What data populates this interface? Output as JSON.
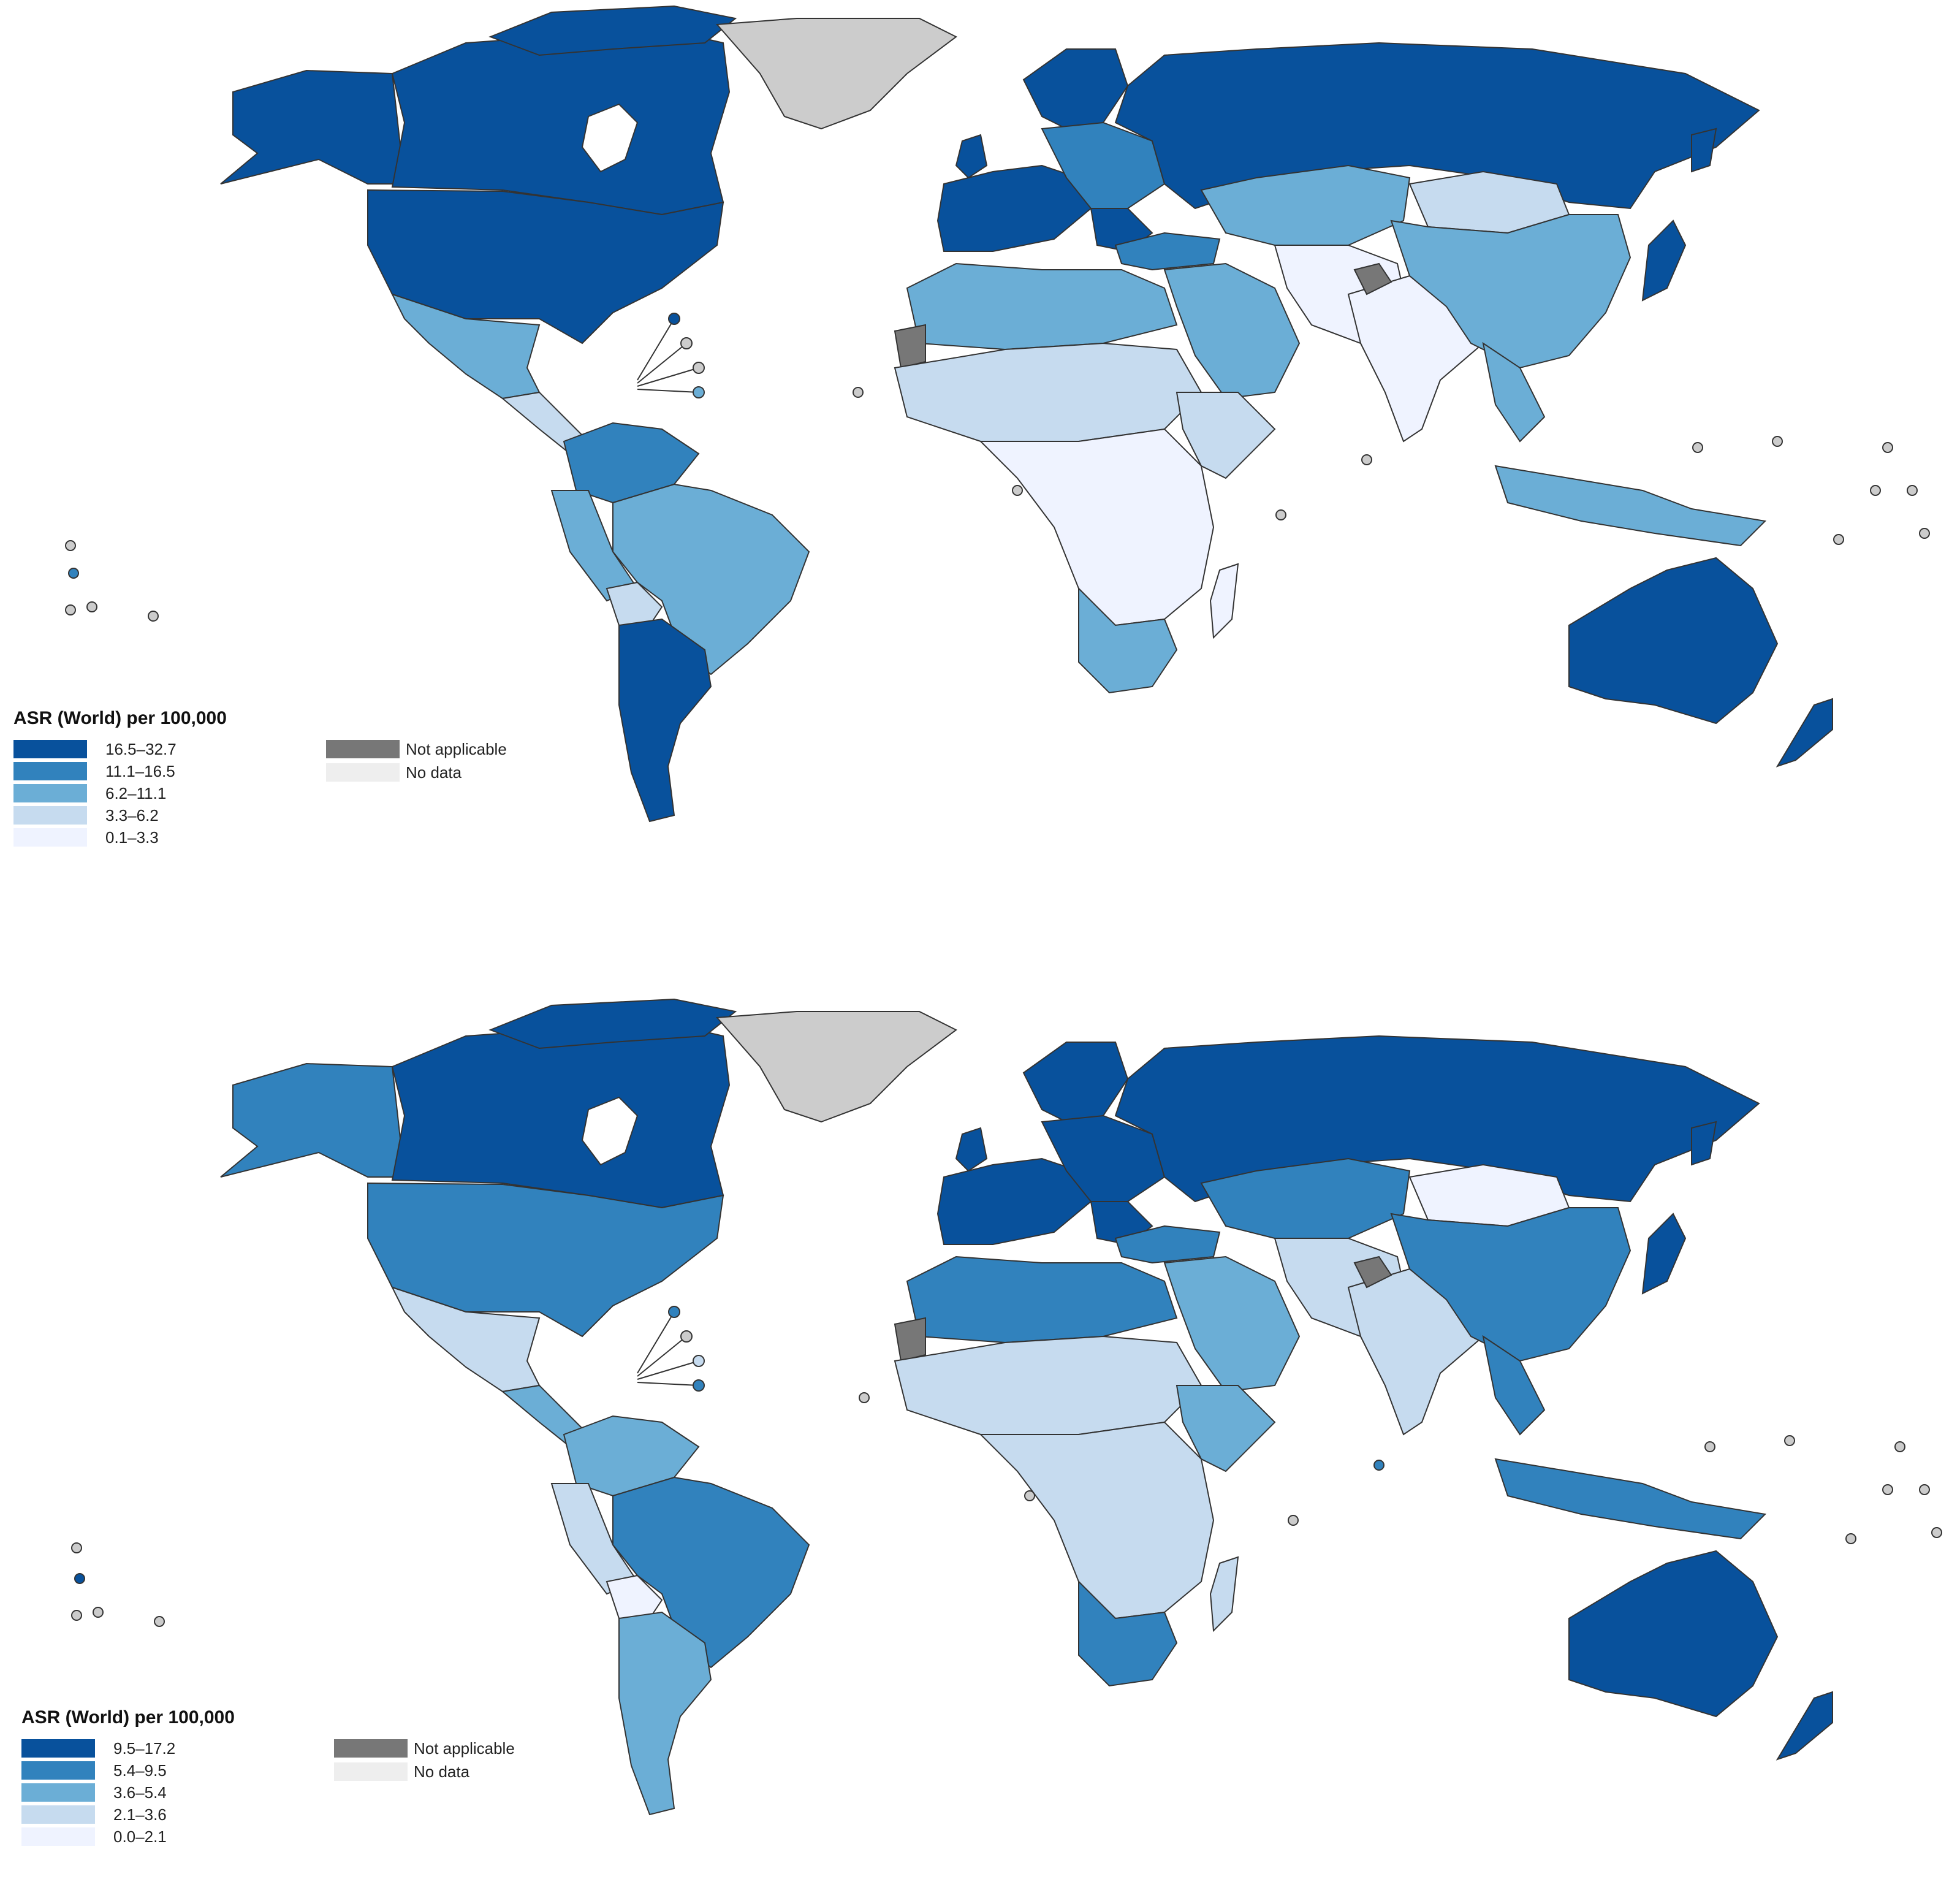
{
  "colors": {
    "not_applicable": "#777777",
    "no_data": "#eeeeee",
    "greenland": "#cccccc",
    "border": "#333333"
  },
  "maps": [
    {
      "legend": {
        "title": "ASR (World) per 100,000",
        "classes": [
          {
            "label": "16.5–32.7",
            "color": "#08519c"
          },
          {
            "label": "11.1–16.5",
            "color": "#3182bd"
          },
          {
            "label": "6.2–11.1",
            "color": "#6baed6"
          },
          {
            "label": "3.3–6.2",
            "color": "#c6dbef"
          },
          {
            "label": "0.1–3.3",
            "color": "#eff3ff"
          }
        ],
        "extra": [
          {
            "label": "Not applicable",
            "color": "#777777"
          },
          {
            "label": "No data",
            "color": "#eeeeee"
          }
        ]
      }
    },
    {
      "legend": {
        "title": "ASR (World) per 100,000",
        "classes": [
          {
            "label": "9.5–17.2",
            "color": "#08519c"
          },
          {
            "label": "5.4–9.5",
            "color": "#3182bd"
          },
          {
            "label": "3.6–5.4",
            "color": "#6baed6"
          },
          {
            "label": "2.1–3.6",
            "color": "#c6dbef"
          },
          {
            "label": "0.0–2.1",
            "color": "#eff3ff"
          }
        ],
        "extra": [
          {
            "label": "Not applicable",
            "color": "#777777"
          },
          {
            "label": "No data",
            "color": "#eeeeee"
          }
        ]
      }
    }
  ]
}
